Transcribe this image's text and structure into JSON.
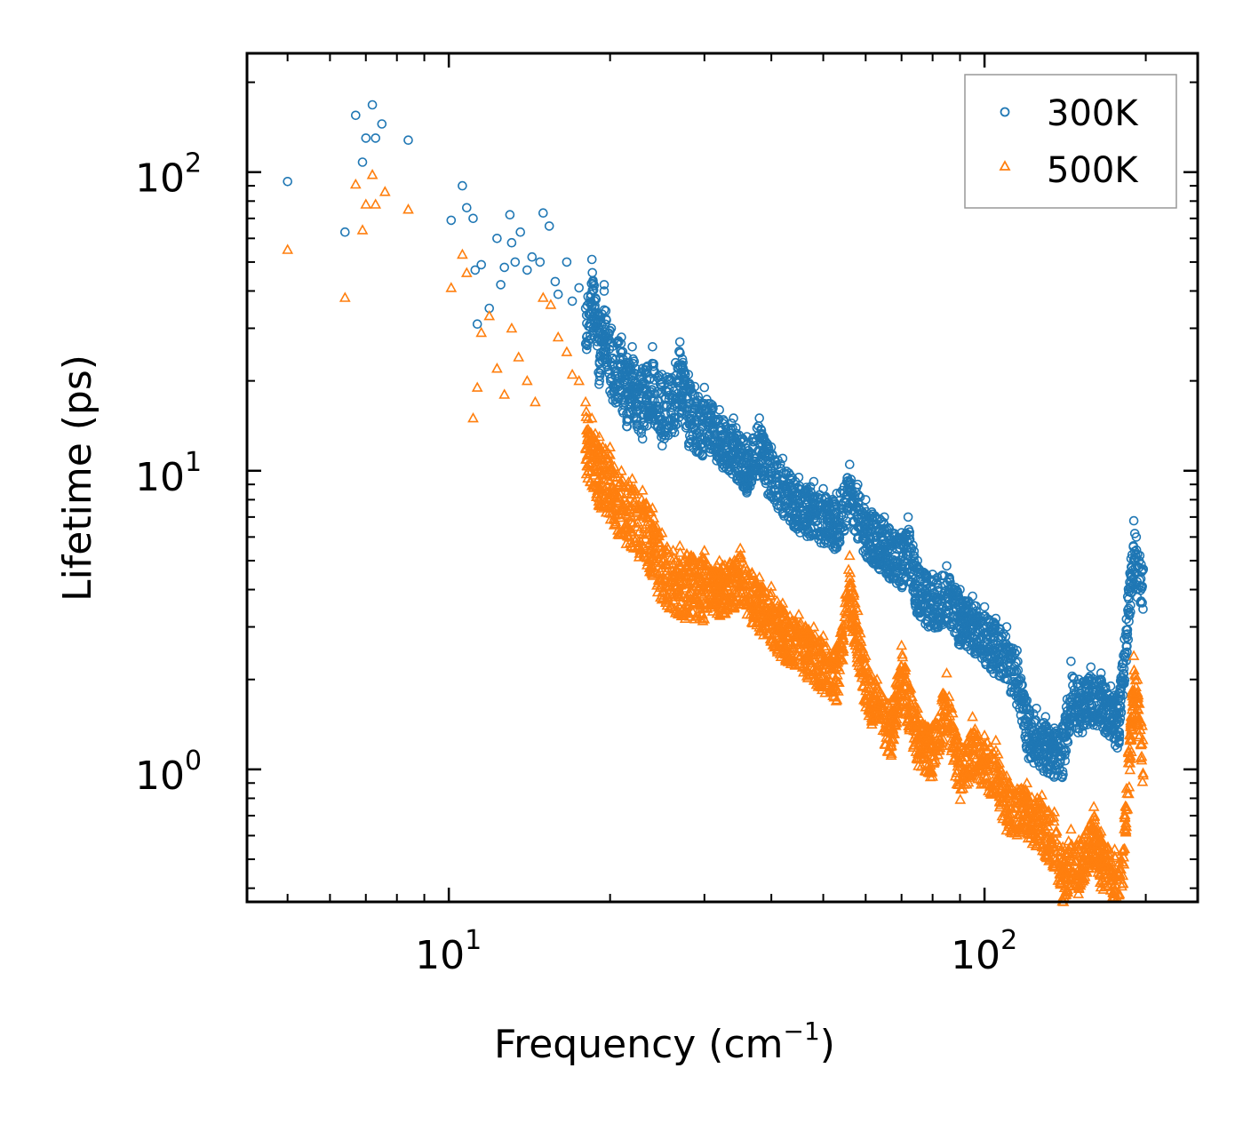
{
  "chart_data": {
    "type": "scatter",
    "xscale": "log",
    "yscale": "log",
    "xlim": [
      4.2,
      250
    ],
    "ylim": [
      0.36,
      250
    ],
    "xlabel": "Frequency (cm",
    "xlabel_sup": "−1",
    "xlabel_end": ")",
    "ylabel": "Lifetime (ps)",
    "xticks": [
      {
        "value": 10,
        "base": "10",
        "exp": "1"
      },
      {
        "value": 100,
        "base": "10",
        "exp": "2"
      }
    ],
    "yticks": [
      {
        "value": 1,
        "base": "10",
        "exp": "0"
      },
      {
        "value": 10,
        "base": "10",
        "exp": "1"
      },
      {
        "value": 100,
        "base": "10",
        "exp": "2"
      }
    ],
    "legend_position": "top-right",
    "series": [
      {
        "name": "300K",
        "marker": "circle",
        "color": "#1f77b4",
        "points": [
          [
            5.0,
            93
          ],
          [
            6.4,
            63
          ],
          [
            6.9,
            108
          ],
          [
            7.0,
            130
          ],
          [
            7.2,
            168
          ],
          [
            7.3,
            130
          ],
          [
            7.5,
            145
          ],
          [
            6.7,
            155
          ],
          [
            8.4,
            128
          ],
          [
            10.1,
            69
          ],
          [
            10.6,
            90
          ],
          [
            10.8,
            76
          ],
          [
            11.1,
            70
          ],
          [
            11.2,
            47
          ],
          [
            11.3,
            31
          ],
          [
            11.5,
            49
          ],
          [
            11.9,
            35
          ],
          [
            12.3,
            60
          ],
          [
            12.5,
            42
          ],
          [
            12.7,
            48
          ],
          [
            13.0,
            72
          ],
          [
            13.1,
            58
          ],
          [
            13.3,
            50
          ],
          [
            13.6,
            63
          ],
          [
            14.0,
            47
          ],
          [
            14.3,
            52
          ],
          [
            14.8,
            50
          ],
          [
            15.0,
            73
          ],
          [
            15.4,
            66
          ],
          [
            15.8,
            43
          ],
          [
            16.0,
            39
          ],
          [
            16.6,
            50
          ],
          [
            17.0,
            37
          ],
          [
            17.5,
            41
          ],
          [
            18.0,
            35
          ],
          [
            18.5,
            51
          ],
          [
            19.1,
            33
          ],
          [
            19.5,
            42
          ],
          [
            20.1,
            30
          ],
          [
            21.0,
            28
          ],
          [
            21.5,
            24
          ],
          [
            22.0,
            26
          ],
          [
            23.0,
            22
          ],
          [
            24.0,
            26
          ],
          [
            25.0,
            21
          ],
          [
            26.5,
            23
          ],
          [
            27.0,
            27
          ],
          [
            28.0,
            21
          ],
          [
            30.0,
            19
          ],
          [
            32.0,
            16
          ],
          [
            34.0,
            15
          ],
          [
            36.0,
            13
          ],
          [
            38.0,
            15
          ],
          [
            40.0,
            12
          ],
          [
            42.0,
            11
          ],
          [
            45.0,
            9.5
          ],
          [
            48.0,
            9.2
          ],
          [
            50.0,
            8.7
          ],
          [
            53.0,
            8.4
          ],
          [
            56.0,
            10.5
          ],
          [
            58.0,
            9.0
          ],
          [
            60.0,
            8.0
          ],
          [
            65.0,
            7.0
          ],
          [
            70.0,
            6.2
          ],
          [
            72.0,
            7.0
          ],
          [
            75.0,
            5.0
          ],
          [
            80.0,
            4.5
          ],
          [
            85.0,
            4.8
          ],
          [
            90.0,
            4.0
          ],
          [
            95.0,
            3.8
          ],
          [
            100.0,
            3.5
          ],
          [
            105.0,
            3.2
          ],
          [
            110.0,
            3.0
          ],
          [
            115.0,
            2.5
          ],
          [
            120.0,
            1.7
          ],
          [
            125.0,
            1.6
          ],
          [
            130.0,
            1.5
          ],
          [
            140.0,
            1.4
          ],
          [
            145.0,
            2.3
          ],
          [
            150.0,
            2.0
          ],
          [
            158.0,
            2.2
          ],
          [
            165.0,
            2.1
          ],
          [
            172.0,
            1.9
          ],
          [
            178.0,
            1.8
          ],
          [
            190.0,
            6.8
          ],
          [
            192.0,
            6.0
          ],
          [
            195.0,
            5.2
          ]
        ]
      },
      {
        "name": "500K",
        "marker": "triangle",
        "color": "#ff7f0e",
        "points": [
          [
            5.0,
            55
          ],
          [
            6.4,
            38
          ],
          [
            6.9,
            64
          ],
          [
            7.0,
            78
          ],
          [
            7.2,
            98
          ],
          [
            7.3,
            78
          ],
          [
            7.6,
            86
          ],
          [
            6.7,
            91
          ],
          [
            8.4,
            75
          ],
          [
            10.1,
            41
          ],
          [
            10.6,
            53
          ],
          [
            10.8,
            46
          ],
          [
            11.1,
            15
          ],
          [
            11.3,
            19
          ],
          [
            11.5,
            29
          ],
          [
            11.9,
            33
          ],
          [
            12.3,
            22
          ],
          [
            12.7,
            18
          ],
          [
            13.1,
            30
          ],
          [
            13.5,
            24
          ],
          [
            14.0,
            20
          ],
          [
            14.5,
            17
          ],
          [
            15.0,
            38
          ],
          [
            15.5,
            36
          ],
          [
            16.0,
            28
          ],
          [
            16.6,
            25
          ],
          [
            17.0,
            21
          ],
          [
            17.5,
            20
          ],
          [
            18.0,
            17
          ],
          [
            18.5,
            15
          ],
          [
            19.1,
            13
          ],
          [
            20.0,
            12
          ],
          [
            21.0,
            10
          ],
          [
            22.0,
            9.4
          ],
          [
            23.0,
            8.6
          ],
          [
            24.0,
            7.5
          ],
          [
            25.0,
            6.2
          ],
          [
            27.0,
            5.6
          ],
          [
            30.0,
            5.4
          ],
          [
            32.0,
            5.0
          ],
          [
            35.0,
            5.5
          ],
          [
            38.0,
            4.4
          ],
          [
            40.0,
            4.1
          ],
          [
            42.0,
            3.6
          ],
          [
            45.0,
            3.3
          ],
          [
            48.0,
            3.0
          ],
          [
            50.0,
            2.8
          ],
          [
            53.0,
            2.6
          ],
          [
            56.0,
            5.2
          ],
          [
            58.0,
            3.4
          ],
          [
            60.0,
            2.4
          ],
          [
            63.0,
            2.0
          ],
          [
            67.0,
            1.7
          ],
          [
            70.0,
            2.6
          ],
          [
            75.0,
            1.6
          ],
          [
            80.0,
            1.4
          ],
          [
            85.0,
            2.1
          ],
          [
            90.0,
            1.2
          ],
          [
            95.0,
            1.5
          ],
          [
            100.0,
            1.3
          ],
          [
            105.0,
            1.25
          ],
          [
            110.0,
            0.95
          ],
          [
            120.0,
            0.9
          ],
          [
            128.0,
            0.82
          ],
          [
            135.0,
            0.72
          ],
          [
            140.0,
            0.55
          ],
          [
            145.0,
            0.63
          ],
          [
            150.0,
            0.58
          ],
          [
            160.0,
            0.75
          ],
          [
            165.0,
            0.62
          ],
          [
            175.0,
            0.54
          ],
          [
            180.0,
            0.5
          ],
          [
            190.0,
            2.4
          ],
          [
            193.0,
            2.0
          ],
          [
            197.0,
            1.4
          ]
        ]
      }
    ]
  }
}
